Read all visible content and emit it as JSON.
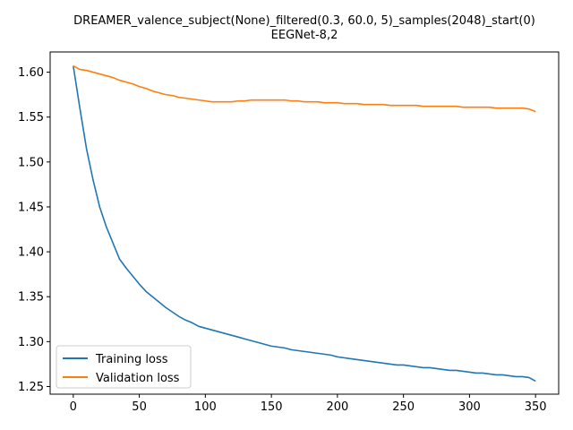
{
  "chart_data": {
    "type": "line",
    "title_lines": [
      "DREAMER_valence_subject(None)_filtered(0.3, 60.0, 5)_samples(2048)_start(0)",
      "EEGNet-8,2"
    ],
    "xlabel": "",
    "ylabel": "",
    "xlim": [
      -17.5,
      367.5
    ],
    "ylim": [
      1.2415,
      1.6225
    ],
    "xticks": [
      0,
      50,
      100,
      150,
      200,
      250,
      300,
      350
    ],
    "yticks": [
      1.25,
      1.3,
      1.35,
      1.4,
      1.45,
      1.5,
      1.55,
      1.6
    ],
    "ytick_labels": [
      "1.25",
      "1.30",
      "1.35",
      "1.40",
      "1.45",
      "1.50",
      "1.55",
      "1.60"
    ],
    "grid": false,
    "legend_position": "lower-left",
    "series": [
      {
        "name": "Training loss",
        "color": "#1f77b4",
        "x": [
          0,
          5,
          10,
          15,
          20,
          25,
          30,
          35,
          40,
          45,
          50,
          55,
          60,
          65,
          70,
          75,
          80,
          85,
          90,
          95,
          100,
          105,
          110,
          115,
          120,
          125,
          130,
          135,
          140,
          145,
          150,
          155,
          160,
          165,
          170,
          175,
          180,
          185,
          190,
          195,
          200,
          205,
          210,
          215,
          220,
          225,
          230,
          235,
          240,
          245,
          250,
          255,
          260,
          265,
          270,
          275,
          280,
          285,
          290,
          295,
          300,
          305,
          310,
          315,
          320,
          325,
          330,
          335,
          340,
          345,
          350
        ],
        "y": [
          1.607,
          1.56,
          1.515,
          1.48,
          1.45,
          1.428,
          1.41,
          1.392,
          1.382,
          1.373,
          1.364,
          1.356,
          1.35,
          1.344,
          1.338,
          1.333,
          1.328,
          1.324,
          1.321,
          1.317,
          1.315,
          1.313,
          1.311,
          1.309,
          1.307,
          1.305,
          1.303,
          1.301,
          1.299,
          1.297,
          1.295,
          1.294,
          1.293,
          1.291,
          1.29,
          1.289,
          1.288,
          1.287,
          1.286,
          1.285,
          1.283,
          1.282,
          1.281,
          1.28,
          1.279,
          1.278,
          1.277,
          1.276,
          1.275,
          1.274,
          1.274,
          1.273,
          1.272,
          1.271,
          1.271,
          1.27,
          1.269,
          1.268,
          1.268,
          1.267,
          1.266,
          1.265,
          1.265,
          1.264,
          1.263,
          1.263,
          1.262,
          1.261,
          1.261,
          1.26,
          1.256
        ]
      },
      {
        "name": "Validation loss",
        "color": "#ff7f0e",
        "x": [
          0,
          5,
          10,
          15,
          20,
          25,
          30,
          35,
          40,
          45,
          50,
          55,
          60,
          65,
          70,
          75,
          80,
          85,
          90,
          95,
          100,
          105,
          110,
          115,
          120,
          125,
          130,
          135,
          140,
          145,
          150,
          155,
          160,
          165,
          170,
          175,
          180,
          185,
          190,
          195,
          200,
          205,
          210,
          215,
          220,
          225,
          230,
          235,
          240,
          245,
          250,
          255,
          260,
          265,
          270,
          275,
          280,
          285,
          290,
          295,
          300,
          305,
          310,
          315,
          320,
          325,
          330,
          335,
          340,
          345,
          350
        ],
        "y": [
          1.607,
          1.603,
          1.602,
          1.6,
          1.598,
          1.596,
          1.594,
          1.591,
          1.589,
          1.587,
          1.584,
          1.582,
          1.579,
          1.577,
          1.575,
          1.574,
          1.572,
          1.571,
          1.57,
          1.569,
          1.568,
          1.567,
          1.567,
          1.567,
          1.567,
          1.568,
          1.568,
          1.569,
          1.569,
          1.569,
          1.569,
          1.569,
          1.569,
          1.568,
          1.568,
          1.567,
          1.567,
          1.567,
          1.566,
          1.566,
          1.566,
          1.565,
          1.565,
          1.565,
          1.564,
          1.564,
          1.564,
          1.564,
          1.563,
          1.563,
          1.563,
          1.563,
          1.563,
          1.562,
          1.562,
          1.562,
          1.562,
          1.562,
          1.562,
          1.561,
          1.561,
          1.561,
          1.561,
          1.561,
          1.56,
          1.56,
          1.56,
          1.56,
          1.56,
          1.559,
          1.556
        ]
      }
    ]
  }
}
